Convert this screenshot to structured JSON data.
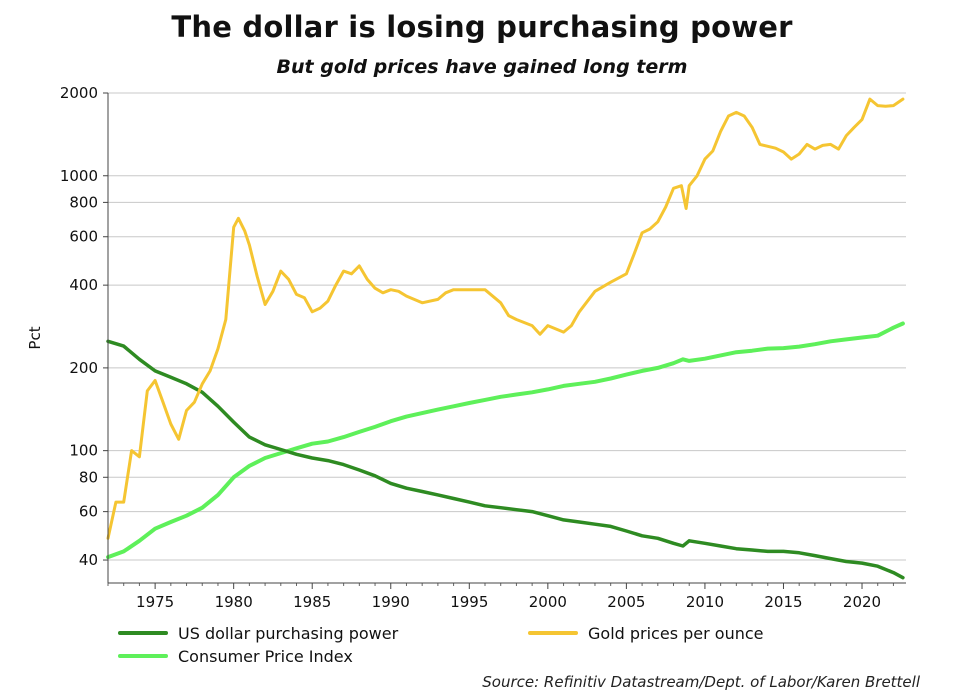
{
  "header": {
    "title": "The dollar is losing purchasing power",
    "subtitle": "But gold prices have gained long term"
  },
  "footer": {
    "source": "Source: Refinitiv Datastream/Dept. of Labor/Karen Brettell"
  },
  "chart_data": {
    "type": "line",
    "title": "The dollar is losing purchasing power",
    "subtitle": "But gold prices have gained long term",
    "xlabel": "",
    "ylabel": "Pct",
    "y_scale": "log",
    "xlim": [
      1972,
      2022.8
    ],
    "ylim": [
      33,
      2000
    ],
    "x_ticks": [
      1975,
      1980,
      1985,
      1990,
      1995,
      2000,
      2005,
      2010,
      2015,
      2020
    ],
    "x_tick_labels": [
      "1975",
      "1980",
      "1985",
      "1990",
      "1995",
      "2000",
      "2005",
      "2010",
      "2015",
      "2020"
    ],
    "y_ticks": [
      40,
      60,
      80,
      100,
      200,
      400,
      600,
      800,
      1000,
      2000
    ],
    "y_tick_labels": [
      "40",
      "60",
      "80",
      "100",
      "200",
      "400",
      "600",
      "800",
      "1000",
      "2000"
    ],
    "grid": "horizontal",
    "legend_position": "bottom",
    "series": [
      {
        "name": "US dollar purchasing power",
        "color": "#2e8b22",
        "x": [
          1972,
          1973,
          1974,
          1975,
          1976,
          1977,
          1978,
          1979,
          1980,
          1981,
          1982,
          1983,
          1984,
          1985,
          1986,
          1987,
          1988,
          1989,
          1990,
          1991,
          1992,
          1993,
          1994,
          1995,
          1996,
          1997,
          1998,
          1999,
          2000,
          2001,
          2002,
          2003,
          2004,
          2005,
          2006,
          2007,
          2008,
          2008.6,
          2009,
          2010,
          2011,
          2012,
          2013,
          2014,
          2015,
          2016,
          2017,
          2018,
          2019,
          2020,
          2021,
          2022,
          2022.6
        ],
        "values": [
          250,
          240,
          215,
          195,
          185,
          175,
          163,
          145,
          127,
          112,
          105,
          101,
          97,
          94,
          92,
          89,
          85,
          81,
          76,
          73,
          71,
          69,
          67,
          65,
          63,
          62,
          61,
          60,
          58,
          56,
          55,
          54,
          53,
          51,
          49,
          48,
          46,
          45,
          47,
          46,
          45,
          44,
          43.5,
          43,
          43,
          42.5,
          41.5,
          40.5,
          39.5,
          39,
          38,
          36,
          34.5
        ]
      },
      {
        "name": "Gold prices per ounce",
        "color": "#f5c532",
        "x": [
          1972,
          1972.5,
          1973,
          1973.5,
          1974,
          1974.5,
          1975,
          1975.5,
          1976,
          1976.5,
          1977,
          1977.5,
          1978,
          1978.5,
          1979,
          1979.5,
          1980,
          1980.3,
          1980.7,
          1981,
          1981.5,
          1982,
          1982.5,
          1983,
          1983.5,
          1984,
          1984.5,
          1985,
          1985.5,
          1986,
          1986.5,
          1987,
          1987.5,
          1988,
          1988.5,
          1989,
          1989.5,
          1990,
          1990.5,
          1991,
          1992,
          1993,
          1993.5,
          1994,
          1995,
          1996,
          1997,
          1997.5,
          1998,
          1999,
          1999.5,
          2000,
          2001,
          2001.5,
          2002,
          2003,
          2004,
          2005,
          2005.5,
          2006,
          2006.5,
          2007,
          2007.5,
          2008,
          2008.5,
          2008.8,
          2009,
          2009.5,
          2010,
          2010.5,
          2011,
          2011.5,
          2012,
          2012.5,
          2013,
          2013.5,
          2014,
          2014.5,
          2015,
          2015.5,
          2016,
          2016.5,
          2017,
          2017.5,
          2018,
          2018.5,
          2019,
          2019.5,
          2020,
          2020.5,
          2021,
          2021.5,
          2022,
          2022.6
        ],
        "values": [
          48,
          65,
          65,
          100,
          95,
          165,
          180,
          150,
          125,
          110,
          140,
          150,
          175,
          195,
          235,
          300,
          650,
          700,
          630,
          560,
          430,
          340,
          380,
          450,
          420,
          370,
          360,
          320,
          330,
          350,
          400,
          450,
          440,
          470,
          420,
          390,
          375,
          385,
          380,
          365,
          345,
          355,
          375,
          385,
          385,
          385,
          345,
          310,
          300,
          285,
          265,
          285,
          270,
          285,
          320,
          380,
          410,
          440,
          520,
          620,
          640,
          680,
          770,
          900,
          920,
          760,
          920,
          1000,
          1150,
          1230,
          1450,
          1650,
          1700,
          1650,
          1500,
          1300,
          1280,
          1260,
          1220,
          1150,
          1200,
          1300,
          1250,
          1290,
          1300,
          1250,
          1400,
          1500,
          1600,
          1900,
          1800,
          1790,
          1800,
          1900
        ]
      },
      {
        "name": "Consumer Price Index",
        "color": "#5ef05a",
        "x": [
          1972,
          1973,
          1974,
          1975,
          1976,
          1977,
          1978,
          1979,
          1980,
          1981,
          1982,
          1983,
          1984,
          1985,
          1986,
          1987,
          1988,
          1989,
          1990,
          1991,
          1992,
          1993,
          1994,
          1995,
          1996,
          1997,
          1998,
          1999,
          2000,
          2001,
          2002,
          2003,
          2004,
          2005,
          2006,
          2007,
          2008,
          2008.6,
          2009,
          2010,
          2011,
          2012,
          2013,
          2014,
          2015,
          2016,
          2017,
          2018,
          2019,
          2020,
          2021,
          2022,
          2022.6
        ],
        "values": [
          41,
          43,
          47,
          52,
          55,
          58,
          62,
          69,
          80,
          88,
          94,
          98,
          102,
          106,
          108,
          112,
          117,
          122,
          128,
          133,
          137,
          141,
          145,
          149,
          153,
          157,
          160,
          163,
          167,
          172,
          175,
          178,
          183,
          189,
          195,
          200,
          208,
          215,
          212,
          216,
          222,
          228,
          231,
          235,
          236,
          239,
          244,
          250,
          254,
          258,
          262,
          280,
          290
        ]
      }
    ]
  }
}
